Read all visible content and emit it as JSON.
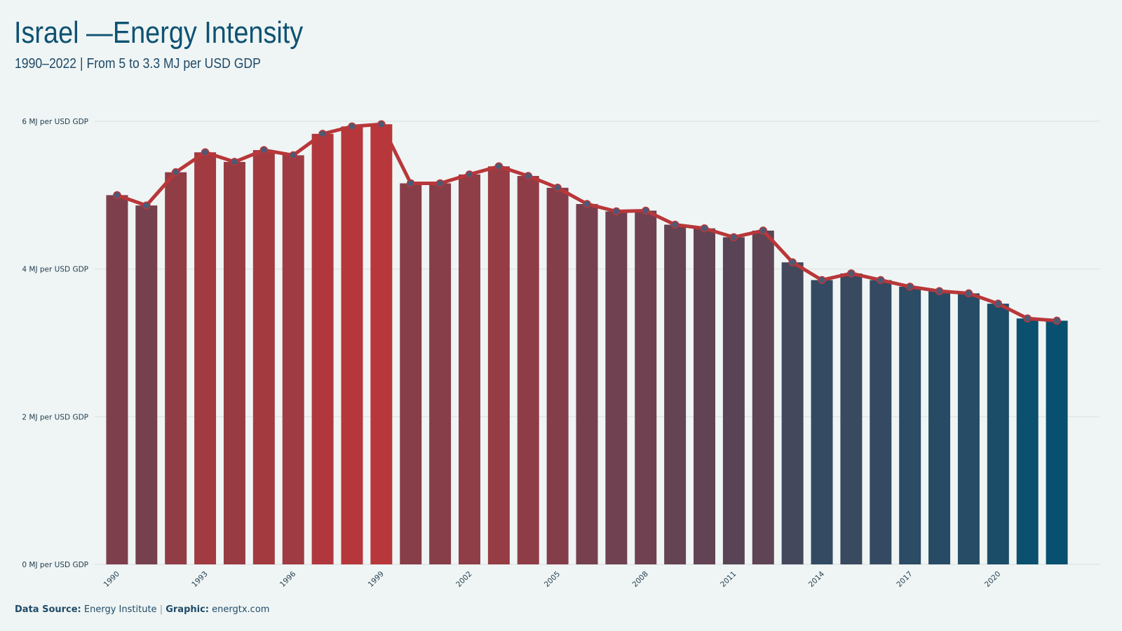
{
  "header": {
    "title": "Israel —Energy Intensity",
    "subtitle": "1990–2022 | From 5 to 3.3 MJ per USD GDP"
  },
  "footer": {
    "source_label": "Data Source:",
    "source_value": "Energy Institute",
    "separator": "|",
    "graphic_label": "Graphic:",
    "graphic_value": "energtx.com"
  },
  "chart_data": {
    "type": "bar",
    "overlay": "line",
    "title": "Israel —Energy Intensity",
    "subtitle": "1990–2022 | From 5 to 3.3 MJ per USD GDP",
    "unit": "MJ per USD GDP",
    "categories": [
      1990,
      1991,
      1992,
      1993,
      1994,
      1995,
      1996,
      1997,
      1998,
      1999,
      2000,
      2001,
      2002,
      2003,
      2004,
      2005,
      2006,
      2007,
      2008,
      2009,
      2010,
      2011,
      2012,
      2013,
      2014,
      2015,
      2016,
      2017,
      2018,
      2019,
      2020,
      2021,
      2022
    ],
    "values": [
      5.0,
      4.86,
      5.31,
      5.58,
      5.45,
      5.61,
      5.54,
      5.83,
      5.93,
      5.96,
      5.16,
      5.16,
      5.28,
      5.39,
      5.26,
      5.1,
      4.88,
      4.78,
      4.79,
      4.6,
      4.55,
      4.43,
      4.52,
      4.09,
      3.85,
      3.94,
      3.85,
      3.76,
      3.7,
      3.67,
      3.53,
      3.33,
      3.3
    ],
    "x_tick_labels": [
      "1990",
      "1993",
      "1996",
      "1999",
      "2002",
      "2005",
      "2008",
      "2011",
      "2014",
      "2017",
      "2020"
    ],
    "y_ticks": [
      0,
      2,
      4,
      6
    ],
    "y_tick_labels": [
      "0 MJ per USD GDP",
      "2 MJ per USD GDP",
      "4 MJ per USD GDP",
      "6 MJ per USD GDP"
    ],
    "ylim": [
      0,
      6
    ],
    "grid": true,
    "colors": {
      "high": "#b8373a",
      "low": "#08506f",
      "line": "#b8373a",
      "marker_fill": "#4d5a75",
      "grid": "#dde3e3",
      "tick_text": "#1f3b4f"
    }
  }
}
